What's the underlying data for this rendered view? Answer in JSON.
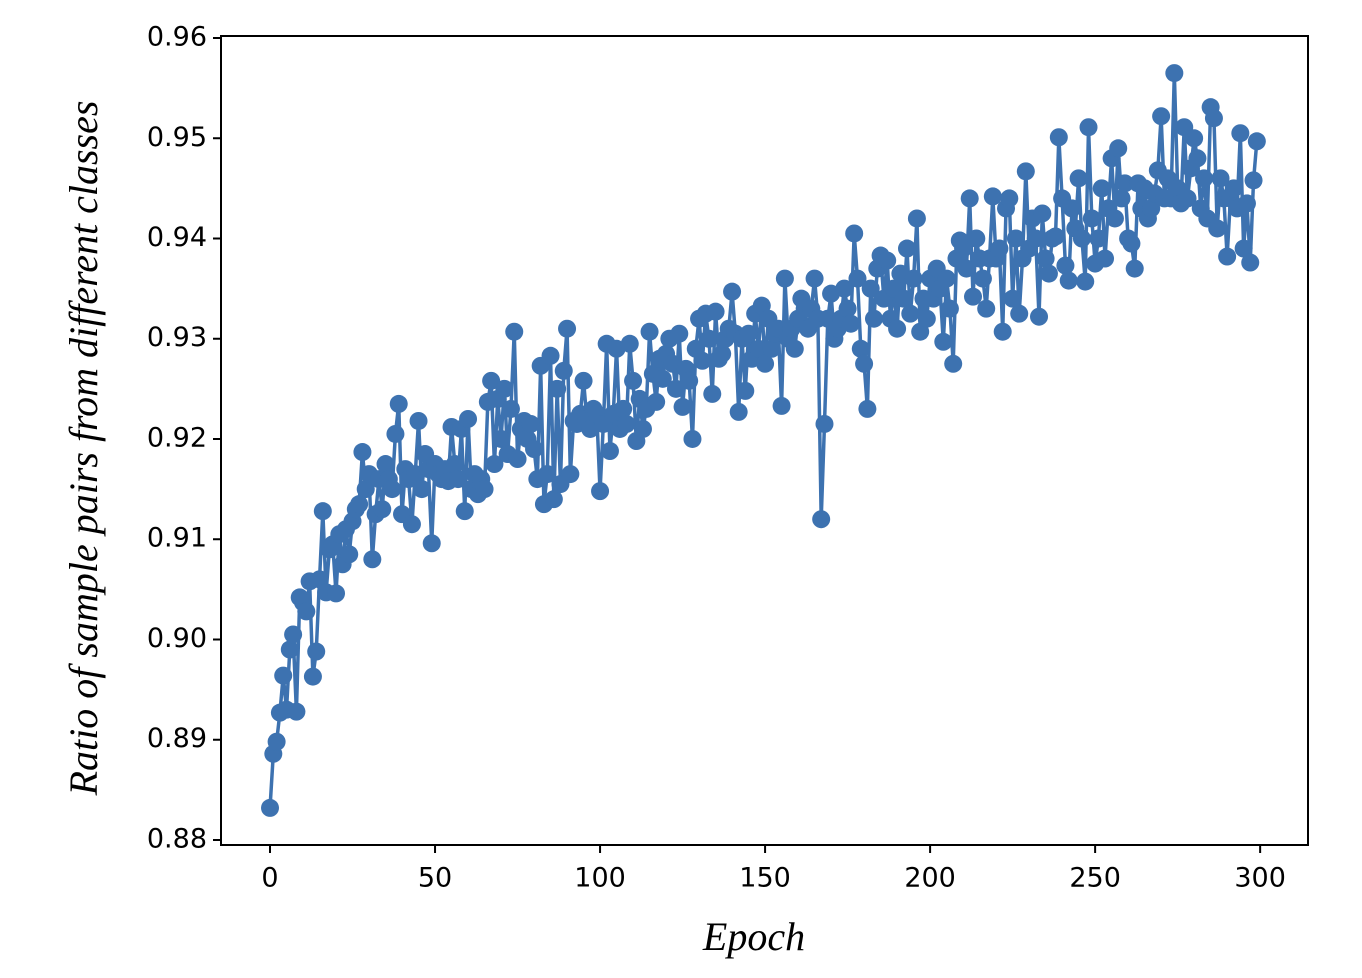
{
  "chart_data": {
    "type": "line",
    "markers": true,
    "color": "#3d72b0",
    "x_label": "Epoch",
    "y_label": "Ratio of sample pairs from different classes",
    "xlim": [
      -14.85,
      314.5
    ],
    "ylim": [
      0.8795,
      0.9602
    ],
    "xticks": [
      0,
      50,
      100,
      150,
      200,
      250,
      300
    ],
    "yticks": [
      0.88,
      0.89,
      {
        "value": 0.9,
        "label": "0.90"
      },
      0.91,
      0.92,
      0.93,
      0.94,
      0.95,
      0.96
    ],
    "x": [
      0,
      1,
      2,
      3,
      4,
      5,
      6,
      7,
      8,
      9,
      10,
      11,
      12,
      13,
      14,
      15,
      16,
      17,
      18,
      19,
      20,
      21,
      22,
      23,
      24,
      25,
      26,
      27,
      28,
      29,
      30,
      31,
      32,
      33,
      34,
      35,
      36,
      37,
      38,
      39,
      40,
      41,
      42,
      43,
      44,
      45,
      46,
      47,
      48,
      49,
      50,
      51,
      52,
      53,
      54,
      55,
      56,
      57,
      58,
      59,
      60,
      61,
      62,
      63,
      64,
      65,
      66,
      67,
      68,
      69,
      70,
      71,
      72,
      73,
      74,
      75,
      76,
      77,
      78,
      79,
      80,
      81,
      82,
      83,
      84,
      85,
      86,
      87,
      88,
      89,
      90,
      91,
      92,
      93,
      94,
      95,
      96,
      97,
      98,
      99,
      100,
      101,
      102,
      103,
      104,
      105,
      106,
      107,
      108,
      109,
      110,
      111,
      112,
      113,
      114,
      115,
      116,
      117,
      118,
      119,
      120,
      121,
      122,
      123,
      124,
      125,
      126,
      127,
      128,
      129,
      130,
      131,
      132,
      133,
      134,
      135,
      136,
      137,
      138,
      139,
      140,
      141,
      142,
      143,
      144,
      145,
      146,
      147,
      148,
      149,
      150,
      151,
      152,
      153,
      154,
      155,
      156,
      157,
      158,
      159,
      160,
      161,
      162,
      163,
      164,
      165,
      166,
      167,
      168,
      169,
      170,
      171,
      172,
      173,
      174,
      175,
      176,
      177,
      178,
      179,
      180,
      181,
      182,
      183,
      184,
      185,
      186,
      187,
      188,
      189,
      190,
      191,
      192,
      193,
      194,
      195,
      196,
      197,
      198,
      199,
      200,
      201,
      202,
      203,
      204,
      205,
      206,
      207,
      208,
      209,
      210,
      211,
      212,
      213,
      214,
      215,
      216,
      217,
      218,
      219,
      220,
      221,
      222,
      223,
      224,
      225,
      226,
      227,
      228,
      229,
      230,
      231,
      232,
      233,
      234,
      235,
      236,
      237,
      238,
      239,
      240,
      241,
      242,
      243,
      244,
      245,
      246,
      247,
      248,
      249,
      250,
      251,
      252,
      253,
      254,
      255,
      256,
      257,
      258,
      259,
      260,
      261,
      262,
      263,
      264,
      265,
      266,
      267,
      268,
      269,
      270,
      271,
      272,
      273,
      274,
      275,
      276,
      277,
      278,
      279,
      280,
      281,
      282,
      283,
      284,
      285,
      286,
      287,
      288,
      289,
      290,
      291,
      292,
      293,
      294,
      295,
      296,
      297,
      298,
      299
    ],
    "values": [
      0.8832,
      0.8886,
      0.8898,
      0.8927,
      0.8964,
      0.893,
      0.899,
      0.9005,
      0.8928,
      0.9042,
      0.9037,
      0.9028,
      0.9058,
      0.8963,
      0.8988,
      0.906,
      0.9128,
      0.9047,
      0.909,
      0.9095,
      0.9046,
      0.9105,
      0.9075,
      0.911,
      0.9085,
      0.9118,
      0.913,
      0.9135,
      0.9187,
      0.915,
      0.9165,
      0.908,
      0.9125,
      0.916,
      0.913,
      0.9175,
      0.916,
      0.915,
      0.9205,
      0.9235,
      0.9125,
      0.917,
      0.916,
      0.9115,
      0.9165,
      0.9218,
      0.915,
      0.9185,
      0.917,
      0.9096,
      0.9175,
      0.9165,
      0.916,
      0.917,
      0.9158,
      0.9212,
      0.9175,
      0.916,
      0.921,
      0.9128,
      0.922,
      0.915,
      0.9165,
      0.9145,
      0.916,
      0.915,
      0.9237,
      0.9258,
      0.9175,
      0.924,
      0.92,
      0.925,
      0.9185,
      0.923,
      0.9307,
      0.918,
      0.921,
      0.9218,
      0.92,
      0.9215,
      0.919,
      0.916,
      0.9273,
      0.9135,
      0.9165,
      0.9283,
      0.914,
      0.925,
      0.9155,
      0.9268,
      0.931,
      0.9165,
      0.9218,
      0.9215,
      0.9225,
      0.9258,
      0.922,
      0.921,
      0.923,
      0.9225,
      0.9148,
      0.9215,
      0.9295,
      0.9188,
      0.9225,
      0.929,
      0.921,
      0.923,
      0.9215,
      0.9295,
      0.9258,
      0.9198,
      0.924,
      0.921,
      0.923,
      0.9307,
      0.9265,
      0.9237,
      0.928,
      0.926,
      0.9285,
      0.93,
      0.9275,
      0.925,
      0.9305,
      0.9232,
      0.927,
      0.9258,
      0.92,
      0.929,
      0.932,
      0.9278,
      0.9325,
      0.93,
      0.9245,
      0.9327,
      0.928,
      0.9285,
      0.93,
      0.931,
      0.9347,
      0.9305,
      0.9227,
      0.93,
      0.9248,
      0.9305,
      0.928,
      0.9325,
      0.929,
      0.9333,
      0.9275,
      0.932,
      0.929,
      0.9305,
      0.931,
      0.9233,
      0.936,
      0.93,
      0.931,
      0.929,
      0.932,
      0.934,
      0.933,
      0.931,
      0.933,
      0.936,
      0.932,
      0.912,
      0.9215,
      0.932,
      0.9345,
      0.93,
      0.931,
      0.932,
      0.935,
      0.933,
      0.9315,
      0.9405,
      0.936,
      0.929,
      0.9275,
      0.923,
      0.935,
      0.932,
      0.937,
      0.9383,
      0.934,
      0.9378,
      0.932,
      0.935,
      0.931,
      0.9365,
      0.934,
      0.939,
      0.9325,
      0.936,
      0.942,
      0.9307,
      0.934,
      0.932,
      0.936,
      0.934,
      0.937,
      0.935,
      0.9297,
      0.936,
      0.933,
      0.9275,
      0.938,
      0.9398,
      0.939,
      0.937,
      0.944,
      0.9342,
      0.94,
      0.938,
      0.936,
      0.933,
      0.938,
      0.9442,
      0.938,
      0.939,
      0.9307,
      0.943,
      0.944,
      0.934,
      0.94,
      0.9325,
      0.938,
      0.9467,
      0.939,
      0.942,
      0.94,
      0.9322,
      0.9425,
      0.938,
      0.9365,
      0.94,
      0.9402,
      0.9501,
      0.944,
      0.9373,
      0.9358,
      0.943,
      0.941,
      0.946,
      0.94,
      0.9357,
      0.9511,
      0.942,
      0.9375,
      0.94,
      0.945,
      0.938,
      0.943,
      0.948,
      0.942,
      0.949,
      0.944,
      0.9455,
      0.94,
      0.9395,
      0.937,
      0.9455,
      0.943,
      0.945,
      0.942,
      0.943,
      0.9445,
      0.9468,
      0.9522,
      0.944,
      0.946,
      0.944,
      0.9565,
      0.945,
      0.9435,
      0.9511,
      0.944,
      0.947,
      0.95,
      0.948,
      0.943,
      0.946,
      0.942,
      0.9531,
      0.952,
      0.941,
      0.946,
      0.944,
      0.9382,
      0.944,
      0.945,
      0.943,
      0.9505,
      0.939,
      0.9435,
      0.9376,
      0.9458,
      0.9497
    ]
  }
}
